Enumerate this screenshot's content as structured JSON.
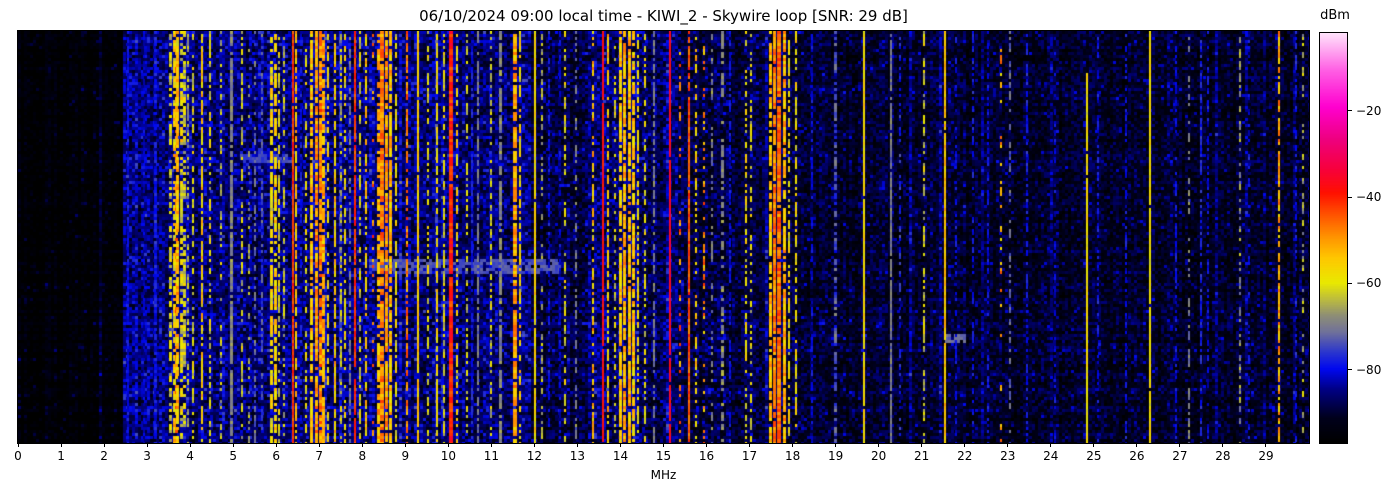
{
  "title": "06/10/2024 09:00 local time - KIWI_2 - Skywire loop [SNR: 29 dB]",
  "station": "KIWI_2",
  "antenna": "Skywire loop",
  "snr_badge": "SNR: 29 dB",
  "timestamp": "06/10/2024 09:00 local time",
  "x_axis": {
    "label": "MHz",
    "ticks": [
      0,
      1,
      2,
      3,
      4,
      5,
      6,
      7,
      8,
      9,
      10,
      11,
      12,
      13,
      14,
      15,
      16,
      17,
      18,
      19,
      20,
      21,
      22,
      23,
      24,
      25,
      26,
      27,
      28,
      29
    ],
    "range": [
      0,
      30
    ]
  },
  "colorbar": {
    "label": "dBm",
    "ticks": [
      -20,
      -40,
      -60,
      -80
    ],
    "vmin": -97,
    "vmax": -2
  },
  "chart_data": {
    "type": "heatmap",
    "title": "06/10/2024 09:00 local time - KIWI_2 - Skywire loop [SNR: 29 dB]",
    "xlabel": "MHz",
    "x_range": [
      0,
      30
    ],
    "y_axis": "time (unlabeled, spans recording period)",
    "value_unit": "dBm",
    "value_range": [
      -97,
      -2
    ],
    "legend_position": "right colorbar",
    "grid": false,
    "colormap": [
      [
        0.0,
        "#000000"
      ],
      [
        0.06,
        "#00001c"
      ],
      [
        0.13,
        "#000085"
      ],
      [
        0.18,
        "#0008f0"
      ],
      [
        0.22,
        "#2a35cf"
      ],
      [
        0.27,
        "#70719a"
      ],
      [
        0.31,
        "#8e8e76"
      ],
      [
        0.35,
        "#bcbc3e"
      ],
      [
        0.39,
        "#e9e900"
      ],
      [
        0.45,
        "#ffc800"
      ],
      [
        0.5,
        "#ff9600"
      ],
      [
        0.56,
        "#ff4f00"
      ],
      [
        0.61,
        "#ff1000"
      ],
      [
        0.67,
        "#f7003e"
      ],
      [
        0.74,
        "#ee007e"
      ],
      [
        0.82,
        "#ff00cf"
      ],
      [
        0.91,
        "#ff5fe4"
      ],
      [
        1.0,
        "#ffe2fb"
      ]
    ],
    "noise_profile_format": "[f_max_MHz, base_dBm, variation_dB, blue_speckle_probability]",
    "noise_profile": [
      [
        2.45,
        -96.5,
        2.5,
        0.1
      ],
      [
        8.0,
        -87.0,
        5.5,
        0.4
      ],
      [
        11.9,
        -87.5,
        5.5,
        0.38
      ],
      [
        13.25,
        -90.0,
        5.0,
        0.3
      ],
      [
        15.5,
        -88.0,
        5.5,
        0.35
      ],
      [
        18.5,
        -90.5,
        5.0,
        0.28
      ],
      [
        22.0,
        -91.2,
        4.5,
        0.25
      ],
      [
        30.0,
        -91.8,
        4.5,
        0.22
      ]
    ],
    "signal_format": "[freq_MHz, width_MHz, level_dBm, duty_cycle, level_variation_dB, optional_start_time_fraction]",
    "signals": [
      [
        2.56,
        0.05,
        -80,
        0.9,
        3
      ],
      [
        2.92,
        0.05,
        -82,
        0.7,
        3
      ],
      [
        3.2,
        0.06,
        -79,
        0.8,
        3
      ],
      [
        3.55,
        0.06,
        -62,
        0.6,
        6
      ],
      [
        3.63,
        0.08,
        -57,
        0.7,
        7
      ],
      [
        3.68,
        0.06,
        -50,
        0.5,
        8
      ],
      [
        3.71,
        0.08,
        -54,
        0.75,
        7
      ],
      [
        3.79,
        0.07,
        -59,
        0.65,
        7
      ],
      [
        3.88,
        0.06,
        -62,
        0.55,
        6
      ],
      [
        3.96,
        0.05,
        -65,
        0.45,
        5
      ],
      [
        4.06,
        0.05,
        -61,
        0.5,
        5
      ],
      [
        4.27,
        0.05,
        -56,
        0.8,
        6
      ],
      [
        4.46,
        0.04,
        -61,
        0.55,
        6
      ],
      [
        4.72,
        0.05,
        -63,
        0.35,
        5
      ],
      [
        4.95,
        0.08,
        -69,
        0.85,
        3
      ],
      [
        5.2,
        0.04,
        -63,
        0.45,
        6
      ],
      [
        5.36,
        0.04,
        -66,
        0.3,
        4
      ],
      [
        5.5,
        0.05,
        -72,
        0.5,
        4
      ],
      [
        5.68,
        0.05,
        -73,
        0.5,
        4
      ],
      [
        5.9,
        0.06,
        -58,
        0.7,
        6
      ],
      [
        5.98,
        0.06,
        -56,
        0.7,
        6
      ],
      [
        6.07,
        0.05,
        -60,
        0.6,
        6
      ],
      [
        6.18,
        0.05,
        -63,
        0.5,
        5
      ],
      [
        6.4,
        0.04,
        -42,
        0.95,
        4
      ],
      [
        6.46,
        0.05,
        -55,
        0.7,
        6
      ],
      [
        6.58,
        0.05,
        -79,
        0.6,
        3
      ],
      [
        6.7,
        0.05,
        -60,
        0.5,
        5
      ],
      [
        6.83,
        0.06,
        -54,
        0.8,
        6
      ],
      [
        6.93,
        0.07,
        -50,
        0.85,
        6
      ],
      [
        7.02,
        0.07,
        -48,
        0.85,
        6
      ],
      [
        7.1,
        0.06,
        -52,
        0.8,
        6
      ],
      [
        7.2,
        0.05,
        -58,
        0.6,
        5
      ],
      [
        7.37,
        0.05,
        -55,
        0.75,
        6
      ],
      [
        7.5,
        0.04,
        -62,
        0.5,
        5
      ],
      [
        7.6,
        0.05,
        -58,
        0.55,
        6
      ],
      [
        7.72,
        0.05,
        -70,
        0.6,
        3
      ],
      [
        7.84,
        0.035,
        -42,
        0.9,
        4
      ],
      [
        7.95,
        0.04,
        -62,
        0.5,
        5
      ],
      [
        8.08,
        0.05,
        -55,
        0.65,
        6
      ],
      [
        8.25,
        0.04,
        -47,
        0.2,
        7
      ],
      [
        8.37,
        0.06,
        -52,
        0.7,
        6
      ],
      [
        8.46,
        0.09,
        -48,
        0.9,
        6
      ],
      [
        8.56,
        0.08,
        -50,
        0.85,
        6
      ],
      [
        8.66,
        0.07,
        -54,
        0.8,
        6
      ],
      [
        8.79,
        0.05,
        -59,
        0.6,
        5
      ],
      [
        9.03,
        0.05,
        -48,
        0.7,
        7
      ],
      [
        9.3,
        0.045,
        -55,
        0.9,
        4
      ],
      [
        9.52,
        0.05,
        -60,
        0.5,
        5
      ],
      [
        9.74,
        0.05,
        -58,
        0.7,
        5
      ],
      [
        9.9,
        0.05,
        -61,
        0.55,
        5
      ],
      [
        10.07,
        0.09,
        -40,
        0.95,
        5
      ],
      [
        10.2,
        0.04,
        -57,
        0.5,
        5
      ],
      [
        10.43,
        0.04,
        -62,
        0.45,
        5
      ],
      [
        10.55,
        0.05,
        -79,
        0.6,
        3
      ],
      [
        10.7,
        0.05,
        -70,
        0.75,
        3
      ],
      [
        10.98,
        0.04,
        -62,
        0.5,
        5
      ],
      [
        11.22,
        0.07,
        -69,
        0.8,
        3
      ],
      [
        11.55,
        0.09,
        -51,
        0.9,
        6
      ],
      [
        11.66,
        0.05,
        -57,
        0.6,
        6
      ],
      [
        12.02,
        0.04,
        -57,
        0.95,
        4
      ],
      [
        12.17,
        0.04,
        -65,
        0.4,
        4
      ],
      [
        12.35,
        0.05,
        -80,
        0.6,
        3
      ],
      [
        12.6,
        0.04,
        -81,
        0.5,
        3
      ],
      [
        12.72,
        0.04,
        -60,
        0.5,
        6
      ],
      [
        12.96,
        0.05,
        -70,
        0.45,
        4
      ],
      [
        13.37,
        0.05,
        -54,
        0.6,
        7
      ],
      [
        13.6,
        0.045,
        -38,
        0.96,
        3
      ],
      [
        13.71,
        0.05,
        -55,
        0.6,
        6
      ],
      [
        13.88,
        0.04,
        -61,
        0.4,
        5
      ],
      [
        14.0,
        0.07,
        -55,
        0.8,
        6
      ],
      [
        14.1,
        0.08,
        -52,
        0.85,
        6
      ],
      [
        14.2,
        0.08,
        -53,
        0.85,
        6
      ],
      [
        14.3,
        0.07,
        -55,
        0.8,
        6
      ],
      [
        14.4,
        0.05,
        -58,
        0.6,
        5
      ],
      [
        14.58,
        0.04,
        -60,
        0.5,
        5
      ],
      [
        14.78,
        0.05,
        -70,
        0.6,
        3
      ],
      [
        15.16,
        0.05,
        -36,
        0.97,
        3
      ],
      [
        15.38,
        0.05,
        -48,
        0.25,
        8
      ],
      [
        15.6,
        0.04,
        -44,
        0.9,
        4
      ],
      [
        15.75,
        0.05,
        -56,
        0.5,
        6
      ],
      [
        15.95,
        0.05,
        -50,
        0.3,
        8
      ],
      [
        16.12,
        0.05,
        -70,
        0.5,
        4
      ],
      [
        16.36,
        0.06,
        -68,
        0.55,
        3
      ],
      [
        16.55,
        0.05,
        -80,
        0.6,
        3
      ],
      [
        16.92,
        0.05,
        -59,
        0.5,
        5
      ],
      [
        17.03,
        0.04,
        -61,
        0.45,
        5
      ],
      [
        17.49,
        0.06,
        -54,
        0.8,
        6
      ],
      [
        17.58,
        0.08,
        -48,
        0.92,
        5
      ],
      [
        17.69,
        0.09,
        -46,
        0.95,
        5
      ],
      [
        17.81,
        0.06,
        -52,
        0.85,
        6
      ],
      [
        17.92,
        0.04,
        -59,
        0.6,
        5
      ],
      [
        18.07,
        0.05,
        -58,
        0.55,
        5
      ],
      [
        18.45,
        0.04,
        -80,
        0.5,
        3
      ],
      [
        19.0,
        0.06,
        -73,
        0.6,
        4
      ],
      [
        19.65,
        0.035,
        -57,
        0.97,
        3
      ],
      [
        20.28,
        0.03,
        -70,
        0.9,
        3
      ],
      [
        20.5,
        0.05,
        -78,
        0.5,
        4
      ],
      [
        21.05,
        0.05,
        -62,
        0.5,
        6
      ],
      [
        21.55,
        0.05,
        -54,
        0.95,
        4
      ],
      [
        21.8,
        0.04,
        -80,
        0.4,
        3
      ],
      [
        22.2,
        0.04,
        -79,
        0.5,
        3
      ],
      [
        22.55,
        0.04,
        -80,
        0.5,
        3
      ],
      [
        22.85,
        0.04,
        -52,
        0.2,
        8
      ],
      [
        23.05,
        0.04,
        -72,
        0.4,
        3
      ],
      [
        23.45,
        0.04,
        -79,
        0.6,
        3
      ],
      [
        24.1,
        0.04,
        -81,
        0.4,
        3
      ],
      [
        24.85,
        0.035,
        -58,
        0.96,
        3,
        0.1
      ],
      [
        25.1,
        0.04,
        -80,
        0.5,
        3
      ],
      [
        25.75,
        0.04,
        -80,
        0.5,
        3
      ],
      [
        26.3,
        0.035,
        -58,
        0.97,
        3
      ],
      [
        26.9,
        0.04,
        -80,
        0.5,
        3
      ],
      [
        27.2,
        0.04,
        -70,
        0.5,
        3
      ],
      [
        27.5,
        0.05,
        -78,
        0.7,
        3
      ],
      [
        27.65,
        0.04,
        -80,
        0.5,
        3
      ],
      [
        28.4,
        0.04,
        -68,
        0.5,
        5
      ],
      [
        28.6,
        0.04,
        -80,
        0.4,
        3
      ],
      [
        29.3,
        0.05,
        -52,
        0.8,
        7
      ],
      [
        29.7,
        0.04,
        -79,
        0.5,
        3
      ],
      [
        29.87,
        0.04,
        -65,
        0.35,
        6
      ]
    ],
    "events_format": "horizontal enhancement bands: t fractions of height, f in MHz",
    "events": [
      {
        "t0": 0.555,
        "t1": 0.585,
        "f0": 8.2,
        "f1": 12.6,
        "level": -74
      },
      {
        "t0": 0.735,
        "t1": 0.75,
        "f0": 21.6,
        "f1": 22.0,
        "level": -72
      },
      {
        "t0": 0.3,
        "t1": 0.315,
        "f0": 5.2,
        "f1": 6.4,
        "level": -75
      }
    ]
  }
}
